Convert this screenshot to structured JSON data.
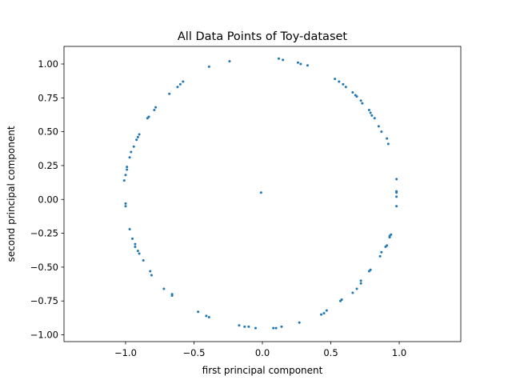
{
  "chart_data": {
    "type": "scatter",
    "title": "All Data Points of Toy-dataset",
    "xlabel": "first principal component",
    "ylabel": "second principal component",
    "xlim": [
      -1.45,
      1.45
    ],
    "ylim": [
      -1.05,
      1.13
    ],
    "xticks": [
      -1.0,
      -0.5,
      0.0,
      0.5,
      1.0
    ],
    "xtick_labels": [
      "−1.0",
      "−0.5",
      "0.0",
      "0.5",
      "1.0"
    ],
    "yticks": [
      -1.0,
      -0.75,
      -0.5,
      -0.25,
      0.0,
      0.25,
      0.5,
      0.75,
      1.0
    ],
    "ytick_labels": [
      "−1.00",
      "−0.75",
      "−0.50",
      "−0.25",
      "0.00",
      "0.25",
      "0.50",
      "0.75",
      "1.00"
    ],
    "grid": false,
    "marker_color": "#1f77b4",
    "series": [
      {
        "points": [
          [
            -0.39,
            0.98
          ],
          [
            -0.24,
            1.02
          ],
          [
            0.12,
            1.04
          ],
          [
            0.15,
            1.03
          ],
          [
            0.26,
            1.01
          ],
          [
            0.28,
            1.0
          ],
          [
            0.33,
            0.99
          ],
          [
            -0.58,
            0.87
          ],
          [
            -0.6,
            0.85
          ],
          [
            -0.62,
            0.83
          ],
          [
            -0.68,
            0.78
          ],
          [
            -0.78,
            0.68
          ],
          [
            -0.79,
            0.66
          ],
          [
            -0.83,
            0.61
          ],
          [
            -0.84,
            0.6
          ],
          [
            -0.9,
            0.48
          ],
          [
            -0.91,
            0.46
          ],
          [
            -0.92,
            0.44
          ],
          [
            -0.94,
            0.39
          ],
          [
            -0.96,
            0.35
          ],
          [
            -0.97,
            0.31
          ],
          [
            -0.99,
            0.24
          ],
          [
            -0.99,
            0.22
          ],
          [
            -1.0,
            0.18
          ],
          [
            -1.01,
            0.14
          ],
          [
            -1.0,
            -0.03
          ],
          [
            -1.0,
            -0.05
          ],
          [
            -0.97,
            -0.22
          ],
          [
            -0.95,
            -0.29
          ],
          [
            -0.93,
            -0.33
          ],
          [
            -0.93,
            -0.35
          ],
          [
            -0.91,
            -0.38
          ],
          [
            -0.9,
            -0.4
          ],
          [
            -0.87,
            -0.45
          ],
          [
            -0.82,
            -0.53
          ],
          [
            -0.81,
            -0.56
          ],
          [
            -0.72,
            -0.66
          ],
          [
            -0.66,
            -0.7
          ],
          [
            -0.66,
            -0.71
          ],
          [
            -0.47,
            -0.83
          ],
          [
            -0.41,
            -0.86
          ],
          [
            -0.39,
            -0.87
          ],
          [
            -0.17,
            -0.93
          ],
          [
            -0.13,
            -0.94
          ],
          [
            -0.1,
            -0.94
          ],
          [
            -0.05,
            -0.95
          ],
          [
            0.08,
            -0.95
          ],
          [
            0.1,
            -0.95
          ],
          [
            0.14,
            -0.94
          ],
          [
            0.27,
            -0.91
          ],
          [
            0.43,
            -0.85
          ],
          [
            0.45,
            -0.84
          ],
          [
            0.47,
            -0.82
          ],
          [
            0.57,
            -0.75
          ],
          [
            0.58,
            -0.74
          ],
          [
            0.66,
            -0.69
          ],
          [
            0.69,
            -0.66
          ],
          [
            0.72,
            -0.62
          ],
          [
            0.72,
            -0.6
          ],
          [
            0.78,
            -0.53
          ],
          [
            0.79,
            -0.52
          ],
          [
            0.86,
            -0.42
          ],
          [
            0.87,
            -0.39
          ],
          [
            0.9,
            -0.35
          ],
          [
            0.91,
            -0.34
          ],
          [
            0.93,
            -0.28
          ],
          [
            0.93,
            -0.27
          ],
          [
            0.94,
            -0.26
          ],
          [
            0.98,
            0.15
          ],
          [
            0.98,
            0.06
          ],
          [
            0.98,
            0.05
          ],
          [
            0.98,
            0.02
          ],
          [
            0.98,
            -0.05
          ],
          [
            0.53,
            0.89
          ],
          [
            0.56,
            0.87
          ],
          [
            0.59,
            0.85
          ],
          [
            0.61,
            0.83
          ],
          [
            0.66,
            0.79
          ],
          [
            0.68,
            0.77
          ],
          [
            0.69,
            0.76
          ],
          [
            0.72,
            0.73
          ],
          [
            0.73,
            0.71
          ],
          [
            0.78,
            0.66
          ],
          [
            0.79,
            0.64
          ],
          [
            0.8,
            0.62
          ],
          [
            0.82,
            0.6
          ],
          [
            0.85,
            0.54
          ],
          [
            0.87,
            0.5
          ],
          [
            0.91,
            0.45
          ],
          [
            0.92,
            0.41
          ],
          [
            -0.01,
            0.05
          ]
        ]
      }
    ]
  }
}
